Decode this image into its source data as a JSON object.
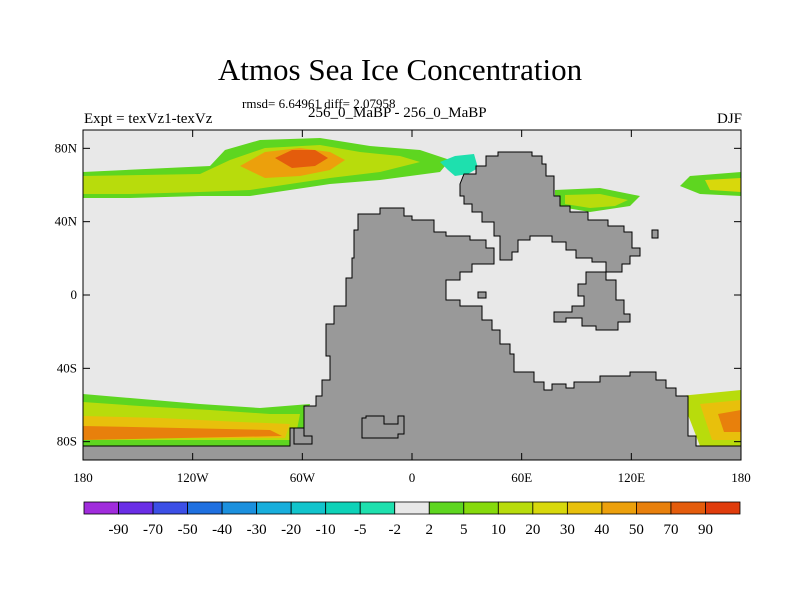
{
  "title": "Atmos Sea Ice Concentration",
  "stats": "rmsd= 6.64961 diff= 2.07958",
  "left_subtitle": "Expt = texVz1-texVz",
  "center_subtitle": "256_0_MaBP - 256_0_MaBP",
  "right_subtitle": "DJF",
  "lat_labels": [
    "80N",
    "40N",
    "0",
    "40S",
    "80S"
  ],
  "lat_values": [
    80,
    40,
    0,
    -40,
    -80
  ],
  "lon_labels": [
    "180",
    "120W",
    "60W",
    "0",
    "60E",
    "120E",
    "180"
  ],
  "lon_values": [
    -180,
    -120,
    -60,
    0,
    60,
    120,
    180
  ],
  "colors": {
    "land": "#999999",
    "background_value": "#e8e8e8"
  },
  "colorbar": {
    "labels": [
      "-90",
      "-70",
      "-50",
      "-40",
      "-30",
      "-20",
      "-10",
      "-5",
      "-2",
      "2",
      "5",
      "10",
      "20",
      "30",
      "40",
      "50",
      "70",
      "90"
    ],
    "colors": [
      "#a02cdc",
      "#6a2ee6",
      "#3c4fe6",
      "#1f70e0",
      "#1b90de",
      "#18aedc",
      "#12c4cc",
      "#0ed2b8",
      "#1ee0ae",
      "#e8e8e8",
      "#5ed620",
      "#86da0c",
      "#b8dc0c",
      "#d8d80c",
      "#e8c00c",
      "#eca00c",
      "#e8800c",
      "#e45c0c",
      "#e03c0c"
    ]
  }
}
